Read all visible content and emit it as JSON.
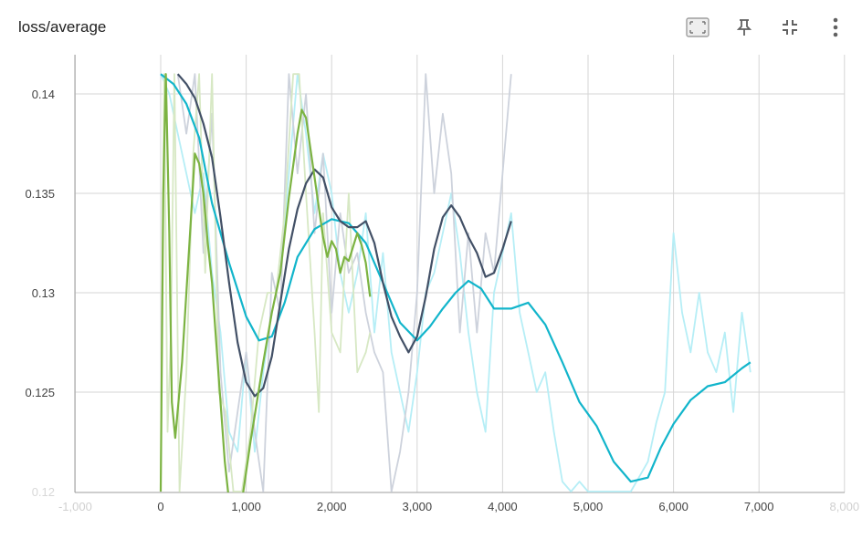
{
  "header": {
    "title": "loss/average",
    "icons": [
      "fit-domain-icon",
      "pin-icon",
      "collapse-icon",
      "more-vert-icon"
    ]
  },
  "colors": {
    "smoothed": [
      "#12b5cb",
      "#425066",
      "#7cb342"
    ],
    "raw": [
      "#b6eef6",
      "#cdd2dc",
      "#d7e8c4"
    ],
    "grid": "#d6d6d6",
    "axis": "#9e9e9e"
  },
  "chart_data": {
    "type": "line",
    "title": "loss/average",
    "xlabel": "",
    "ylabel": "",
    "xlim": [
      -1000,
      8000
    ],
    "ylim": [
      0.12,
      0.141
    ],
    "x_ticks": [
      -1000,
      0,
      1000,
      2000,
      3000,
      4000,
      5000,
      6000,
      7000,
      8000
    ],
    "x_tick_labels": [
      "-1,000",
      "0",
      "1,000",
      "2,000",
      "3,000",
      "4,000",
      "5,000",
      "6,000",
      "7,000",
      "8,000"
    ],
    "y_ticks": [
      0.12,
      0.125,
      0.13,
      0.135,
      0.14
    ],
    "y_tick_labels": [
      "0.12",
      "0.125",
      "0.13",
      "0.135",
      "0.14"
    ],
    "grid": true,
    "series": [
      {
        "color": "#12b5cb",
        "smoothed": [
          [
            0,
            0.141
          ],
          [
            150,
            0.1405
          ],
          [
            300,
            0.1395
          ],
          [
            450,
            0.1378
          ],
          [
            600,
            0.1345
          ],
          [
            800,
            0.1315
          ],
          [
            1000,
            0.1288
          ],
          [
            1150,
            0.1276
          ],
          [
            1300,
            0.1278
          ],
          [
            1450,
            0.1295
          ],
          [
            1600,
            0.1318
          ],
          [
            1800,
            0.1332
          ],
          [
            2000,
            0.1337
          ],
          [
            2200,
            0.1335
          ],
          [
            2400,
            0.1325
          ],
          [
            2600,
            0.1305
          ],
          [
            2800,
            0.1285
          ],
          [
            3000,
            0.1276
          ],
          [
            3150,
            0.1283
          ],
          [
            3300,
            0.1292
          ],
          [
            3450,
            0.13
          ],
          [
            3600,
            0.1306
          ],
          [
            3750,
            0.1302
          ],
          [
            3900,
            0.1292
          ],
          [
            4100,
            0.1292
          ],
          [
            4300,
            0.1295
          ],
          [
            4500,
            0.1284
          ],
          [
            4700,
            0.1265
          ],
          [
            4900,
            0.1245
          ],
          [
            5100,
            0.1233
          ],
          [
            5300,
            0.1215
          ],
          [
            5500,
            0.1205
          ],
          [
            5700,
            0.1207
          ],
          [
            5850,
            0.1222
          ],
          [
            6000,
            0.1234
          ],
          [
            6200,
            0.1246
          ],
          [
            6400,
            0.1253
          ],
          [
            6600,
            0.1255
          ],
          [
            6800,
            0.1262
          ],
          [
            6900,
            0.1265
          ]
        ],
        "raw": [
          [
            0,
            0.141
          ],
          [
            100,
            0.14
          ],
          [
            200,
            0.138
          ],
          [
            300,
            0.136
          ],
          [
            400,
            0.134
          ],
          [
            500,
            0.136
          ],
          [
            600,
            0.131
          ],
          [
            700,
            0.128
          ],
          [
            800,
            0.123
          ],
          [
            900,
            0.122
          ],
          [
            1000,
            0.127
          ],
          [
            1100,
            0.122
          ],
          [
            1200,
            0.126
          ],
          [
            1300,
            0.129
          ],
          [
            1400,
            0.131
          ],
          [
            1500,
            0.136
          ],
          [
            1600,
            0.141
          ],
          [
            1700,
            0.138
          ],
          [
            1800,
            0.134
          ],
          [
            1900,
            0.137
          ],
          [
            2000,
            0.135
          ],
          [
            2100,
            0.131
          ],
          [
            2200,
            0.129
          ],
          [
            2300,
            0.131
          ],
          [
            2400,
            0.134
          ],
          [
            2500,
            0.128
          ],
          [
            2600,
            0.132
          ],
          [
            2700,
            0.127
          ],
          [
            2800,
            0.125
          ],
          [
            2900,
            0.123
          ],
          [
            3000,
            0.126
          ],
          [
            3100,
            0.13
          ],
          [
            3200,
            0.131
          ],
          [
            3300,
            0.133
          ],
          [
            3400,
            0.135
          ],
          [
            3500,
            0.132
          ],
          [
            3600,
            0.128
          ],
          [
            3700,
            0.125
          ],
          [
            3800,
            0.123
          ],
          [
            3900,
            0.13
          ],
          [
            4000,
            0.132
          ],
          [
            4100,
            0.134
          ],
          [
            4200,
            0.129
          ],
          [
            4300,
            0.127
          ],
          [
            4400,
            0.125
          ],
          [
            4500,
            0.126
          ],
          [
            4600,
            0.123
          ],
          [
            4700,
            0.1205
          ],
          [
            4800,
            0.12
          ],
          [
            4900,
            0.1205
          ],
          [
            5000,
            0.12
          ],
          [
            5300,
            0.12
          ],
          [
            5500,
            0.12
          ],
          [
            5700,
            0.1215
          ],
          [
            5800,
            0.1235
          ],
          [
            5900,
            0.125
          ],
          [
            6000,
            0.133
          ],
          [
            6100,
            0.129
          ],
          [
            6200,
            0.127
          ],
          [
            6300,
            0.13
          ],
          [
            6400,
            0.127
          ],
          [
            6500,
            0.126
          ],
          [
            6600,
            0.128
          ],
          [
            6700,
            0.124
          ],
          [
            6800,
            0.129
          ],
          [
            6900,
            0.126
          ]
        ]
      },
      {
        "color": "#425066",
        "smoothed": [
          [
            200,
            0.141
          ],
          [
            300,
            0.1405
          ],
          [
            400,
            0.1398
          ],
          [
            500,
            0.1385
          ],
          [
            600,
            0.1368
          ],
          [
            700,
            0.1338
          ],
          [
            800,
            0.1305
          ],
          [
            900,
            0.1275
          ],
          [
            1000,
            0.1255
          ],
          [
            1100,
            0.1248
          ],
          [
            1200,
            0.1252
          ],
          [
            1300,
            0.1268
          ],
          [
            1400,
            0.1295
          ],
          [
            1500,
            0.1322
          ],
          [
            1600,
            0.1342
          ],
          [
            1700,
            0.1355
          ],
          [
            1800,
            0.1362
          ],
          [
            1900,
            0.1358
          ],
          [
            2000,
            0.1343
          ],
          [
            2100,
            0.1336
          ],
          [
            2200,
            0.1333
          ],
          [
            2300,
            0.1333
          ],
          [
            2400,
            0.1336
          ],
          [
            2500,
            0.1325
          ],
          [
            2600,
            0.1305
          ],
          [
            2700,
            0.1288
          ],
          [
            2800,
            0.1278
          ],
          [
            2900,
            0.127
          ],
          [
            3000,
            0.1278
          ],
          [
            3100,
            0.1298
          ],
          [
            3200,
            0.1322
          ],
          [
            3300,
            0.1338
          ],
          [
            3400,
            0.1344
          ],
          [
            3500,
            0.1338
          ],
          [
            3600,
            0.1328
          ],
          [
            3700,
            0.132
          ],
          [
            3800,
            0.1308
          ],
          [
            3900,
            0.131
          ],
          [
            4000,
            0.1322
          ],
          [
            4100,
            0.1336
          ]
        ],
        "raw": [
          [
            200,
            0.141
          ],
          [
            300,
            0.138
          ],
          [
            400,
            0.141
          ],
          [
            500,
            0.132
          ],
          [
            600,
            0.139
          ],
          [
            700,
            0.126
          ],
          [
            800,
            0.121
          ],
          [
            900,
            0.124
          ],
          [
            1000,
            0.127
          ],
          [
            1100,
            0.123
          ],
          [
            1200,
            0.12
          ],
          [
            1300,
            0.131
          ],
          [
            1400,
            0.129
          ],
          [
            1500,
            0.141
          ],
          [
            1600,
            0.136
          ],
          [
            1700,
            0.14
          ],
          [
            1800,
            0.133
          ],
          [
            1900,
            0.137
          ],
          [
            2000,
            0.129
          ],
          [
            2100,
            0.134
          ],
          [
            2200,
            0.131
          ],
          [
            2300,
            0.132
          ],
          [
            2400,
            0.129
          ],
          [
            2500,
            0.127
          ],
          [
            2600,
            0.126
          ],
          [
            2700,
            0.12
          ],
          [
            2800,
            0.122
          ],
          [
            2900,
            0.125
          ],
          [
            3000,
            0.13
          ],
          [
            3100,
            0.141
          ],
          [
            3200,
            0.135
          ],
          [
            3300,
            0.139
          ],
          [
            3400,
            0.136
          ],
          [
            3500,
            0.128
          ],
          [
            3600,
            0.133
          ],
          [
            3700,
            0.128
          ],
          [
            3800,
            0.133
          ],
          [
            3900,
            0.131
          ],
          [
            4000,
            0.136
          ],
          [
            4100,
            0.141
          ]
        ]
      },
      {
        "color": "#7cb342",
        "smoothed": [
          [
            0,
            0.12
          ],
          [
            30,
            0.135
          ],
          [
            60,
            0.141
          ],
          [
            100,
            0.133
          ],
          [
            130,
            0.1245
          ],
          [
            170,
            0.1227
          ],
          [
            250,
            0.1265
          ],
          [
            350,
            0.1335
          ],
          [
            400,
            0.137
          ],
          [
            450,
            0.1365
          ],
          [
            500,
            0.135
          ],
          [
            550,
            0.1325
          ],
          [
            600,
            0.1305
          ],
          [
            650,
            0.1275
          ],
          [
            700,
            0.1245
          ],
          [
            750,
            0.1215
          ],
          [
            800,
            0.1195
          ],
          [
            900,
            0.117
          ],
          [
            950,
            0.1195
          ],
          [
            1050,
            0.1225
          ],
          [
            1200,
            0.1265
          ],
          [
            1300,
            0.129
          ],
          [
            1400,
            0.131
          ],
          [
            1500,
            0.1348
          ],
          [
            1600,
            0.138
          ],
          [
            1650,
            0.1392
          ],
          [
            1700,
            0.1388
          ],
          [
            1800,
            0.1358
          ],
          [
            1900,
            0.1328
          ],
          [
            1950,
            0.1318
          ],
          [
            2000,
            0.1326
          ],
          [
            2050,
            0.1322
          ],
          [
            2100,
            0.131
          ],
          [
            2150,
            0.1318
          ],
          [
            2200,
            0.1316
          ],
          [
            2300,
            0.133
          ],
          [
            2350,
            0.1324
          ],
          [
            2400,
            0.1315
          ],
          [
            2450,
            0.1298
          ]
        ],
        "raw": [
          [
            0,
            0.12
          ],
          [
            40,
            0.141
          ],
          [
            80,
            0.123
          ],
          [
            120,
            0.128
          ],
          [
            160,
            0.141
          ],
          [
            220,
            0.12
          ],
          [
            300,
            0.126
          ],
          [
            380,
            0.137
          ],
          [
            450,
            0.141
          ],
          [
            520,
            0.131
          ],
          [
            600,
            0.141
          ],
          [
            680,
            0.125
          ],
          [
            760,
            0.124
          ],
          [
            850,
            0.12
          ],
          [
            950,
            0.12
          ],
          [
            1050,
            0.123
          ],
          [
            1150,
            0.128
          ],
          [
            1250,
            0.13
          ],
          [
            1350,
            0.13
          ],
          [
            1450,
            0.134
          ],
          [
            1550,
            0.141
          ],
          [
            1620,
            0.141
          ],
          [
            1700,
            0.135
          ],
          [
            1800,
            0.128
          ],
          [
            1850,
            0.124
          ],
          [
            1900,
            0.134
          ],
          [
            2000,
            0.128
          ],
          [
            2100,
            0.127
          ],
          [
            2200,
            0.135
          ],
          [
            2300,
            0.126
          ],
          [
            2400,
            0.127
          ],
          [
            2450,
            0.128
          ]
        ]
      }
    ]
  }
}
